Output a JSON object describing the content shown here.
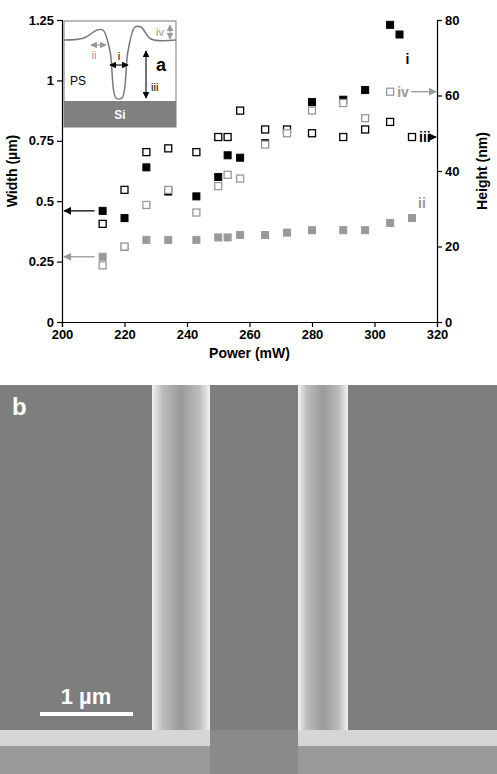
{
  "chart_data": {
    "type": "scatter",
    "panel_label": "a",
    "xlabel": "Power (mW)",
    "ylabel": "Width (µm)",
    "y2label": "Height (nm)",
    "xlim": [
      200,
      320
    ],
    "xticks": [
      200,
      220,
      240,
      260,
      280,
      300,
      320
    ],
    "ylim": [
      0,
      1.25
    ],
    "yticks": [
      0,
      0.25,
      0.5,
      0.75,
      1,
      1.25
    ],
    "y2lim": [
      0,
      80
    ],
    "y2ticks": [
      0,
      20,
      40,
      60,
      80
    ],
    "inset": {
      "labels": [
        "PS",
        "Si"
      ]
    },
    "series": [
      {
        "name": "i",
        "color": "#000000",
        "marker": "square",
        "axis": "y",
        "x": [
          213,
          220,
          227,
          234,
          243,
          250,
          253,
          257,
          265,
          272,
          280,
          290,
          297,
          305,
          308
        ],
        "values": [
          0.46,
          0.43,
          0.64,
          0.54,
          0.52,
          0.6,
          0.69,
          0.68,
          0.74,
          0.79,
          0.91,
          0.92,
          0.96,
          1.23,
          1.19
        ]
      },
      {
        "name": "ii",
        "color": "#999999",
        "marker": "square",
        "axis": "y",
        "x": [
          213,
          220,
          227,
          234,
          243,
          250,
          253,
          257,
          265,
          272,
          280,
          290,
          297,
          305,
          312
        ],
        "values": [
          0.27,
          0.31,
          0.34,
          0.34,
          0.34,
          0.35,
          0.35,
          0.36,
          0.36,
          0.37,
          0.38,
          0.38,
          0.38,
          0.41,
          0.43
        ]
      },
      {
        "name": "iii",
        "color": "#000000",
        "marker": "square-open",
        "axis": "y2",
        "x": [
          213,
          220,
          227,
          234,
          243,
          250,
          253,
          257,
          265,
          272,
          280,
          290,
          297,
          305,
          312
        ],
        "values": [
          26,
          35,
          45,
          46,
          45,
          49,
          49,
          56,
          51,
          51,
          50,
          49,
          51,
          53,
          49
        ]
      },
      {
        "name": "iv",
        "color": "#999999",
        "marker": "square-open",
        "axis": "y2",
        "x": [
          213,
          220,
          227,
          234,
          243,
          250,
          253,
          257,
          265,
          272,
          280,
          290,
          297,
          305
        ],
        "values": [
          15,
          20,
          31,
          35,
          29,
          36,
          39,
          38,
          47,
          50,
          56,
          58,
          54,
          61
        ]
      }
    ]
  },
  "image": {
    "panel_label": "b",
    "scale_bar_label": "1 µm"
  }
}
